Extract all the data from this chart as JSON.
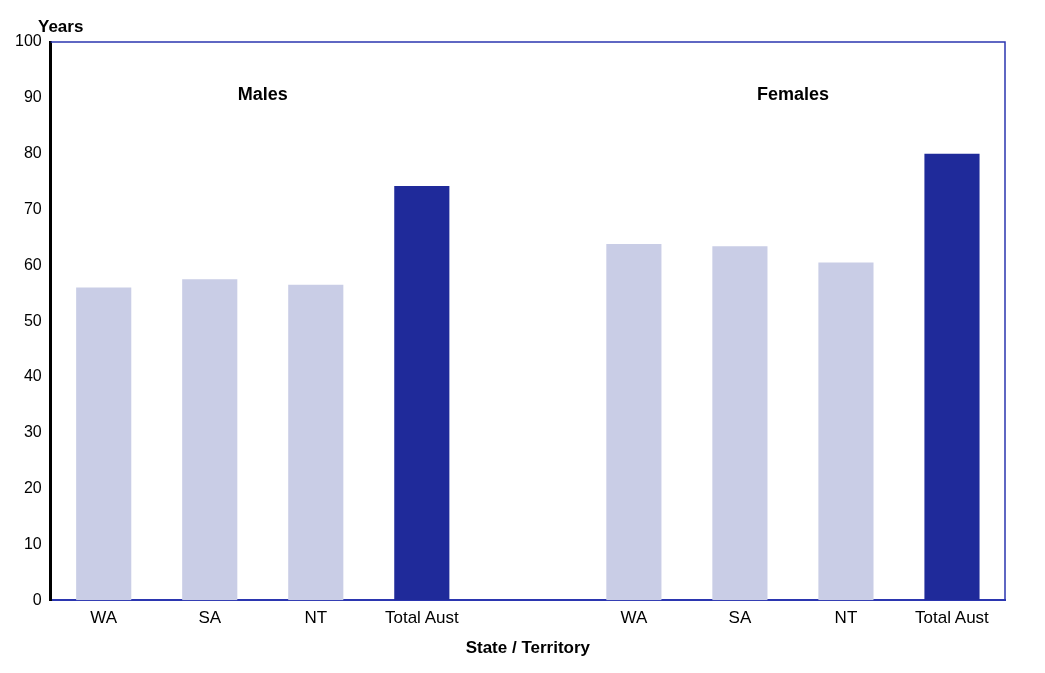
{
  "chart_data": {
    "type": "bar",
    "ylabel": "Years",
    "xlabel": "State / Territory",
    "categories": [
      "WA",
      "SA",
      "NT",
      "Total Aust",
      null,
      "WA",
      "SA",
      "NT",
      "Total Aust"
    ],
    "values": [
      56.0,
      57.5,
      56.5,
      74.2,
      null,
      63.8,
      63.4,
      60.5,
      80.0
    ],
    "colors": [
      "#c9cde6",
      "#c9cde6",
      "#c9cde6",
      "#1f2a9a",
      null,
      "#c9cde6",
      "#c9cde6",
      "#c9cde6",
      "#1f2a9a"
    ],
    "ylim": [
      0,
      100
    ],
    "yticks": [
      0,
      10,
      20,
      30,
      40,
      50,
      60,
      70,
      80,
      90,
      100
    ],
    "annotations": [
      "Males",
      "Females"
    ],
    "grid": false,
    "legend": false
  }
}
